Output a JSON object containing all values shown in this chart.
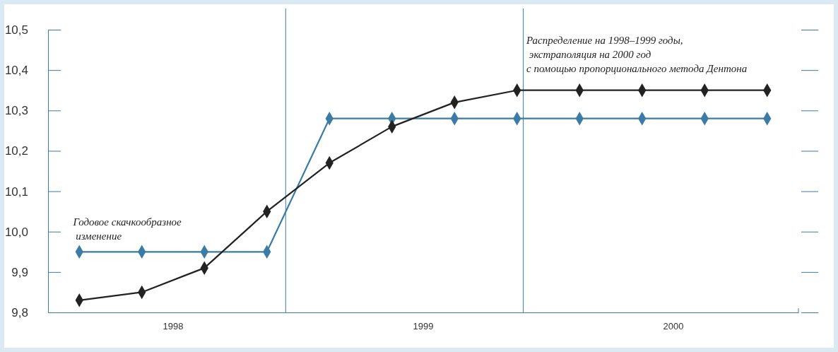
{
  "chart_data": {
    "type": "line",
    "categories": [
      null,
      null,
      null,
      null,
      null,
      null,
      null,
      null,
      null,
      null,
      null,
      null
    ],
    "ylim": [
      9.8,
      10.5
    ],
    "yticks": [
      {
        "value": 9.8,
        "label": "9,8"
      },
      {
        "value": 9.9,
        "label": "9,9"
      },
      {
        "value": 10.0,
        "label": "10,0"
      },
      {
        "value": 10.1,
        "label": "10,1"
      },
      {
        "value": 10.2,
        "label": "10,2"
      },
      {
        "value": 10.3,
        "label": "10,3"
      },
      {
        "value": 10.4,
        "label": "10,4"
      },
      {
        "value": 10.5,
        "label": "10,5"
      }
    ],
    "series": [
      {
        "color": "#3a7ca5",
        "values": [
          9.95,
          9.95,
          9.95,
          9.95,
          10.28,
          10.28,
          10.28,
          10.28,
          10.28,
          10.28,
          10.28,
          10.28
        ]
      },
      {
        "color": "#222222",
        "values": [
          9.83,
          9.85,
          9.91,
          10.05,
          10.17,
          10.26,
          10.32,
          10.35,
          10.35,
          10.35,
          10.35,
          10.35
        ]
      }
    ],
    "marker": "diamond",
    "grid": false,
    "annotations": [
      "1998",
      "1999",
      "2000",
      "Годовое скачкообразное\n изменение",
      "Распределение на 1998–1999 годы,\n экстраполяция на 2000 год\nс помощью пропорционального метода Дентона"
    ]
  }
}
